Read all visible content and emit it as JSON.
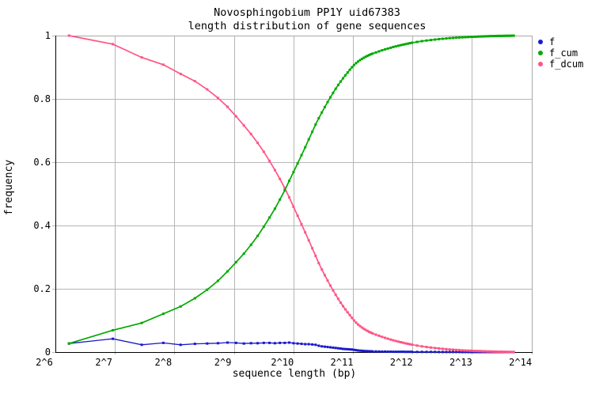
{
  "title": {
    "line1": "Novosphingobium PP1Y uid67383",
    "line2": "length distribution of gene sequences"
  },
  "axes": {
    "x_label": "sequence length (bp)",
    "y_label": "frequency"
  },
  "chart_data": {
    "type": "line",
    "title": "Novosphingobium PP1Y uid67383 - length distribution of gene sequences",
    "xlabel": "sequence length (bp)",
    "ylabel": "frequency",
    "x_scale": "log2",
    "x_ticks": [
      "2^6",
      "2^7",
      "2^8",
      "2^9",
      "2^10",
      "2^11",
      "2^12",
      "2^13",
      "2^14"
    ],
    "x_tick_values": [
      64,
      128,
      256,
      512,
      1024,
      2048,
      4096,
      8192,
      16384
    ],
    "y_ticks": [
      "0",
      "0.2",
      "0.4",
      "0.6",
      "0.8",
      "1"
    ],
    "y_tick_values": [
      0,
      0.2,
      0.4,
      0.6,
      0.8,
      1
    ],
    "ylim": [
      0,
      1
    ],
    "xlim_log2": [
      6,
      14.03
    ],
    "grid": true,
    "legend_position": "top-right-outside",
    "marker": "square",
    "grid_color": "#b6b6b6",
    "border_gray": "#a9a9a9",
    "x": [
      75,
      125,
      175,
      225,
      275,
      325,
      375,
      425,
      475,
      525,
      575,
      625,
      675,
      725,
      775,
      825,
      875,
      925,
      975,
      1025,
      1075,
      1125,
      1175,
      1225,
      1275,
      1325,
      1375,
      1425,
      1475,
      1525,
      1575,
      1625,
      1675,
      1725,
      1775,
      1825,
      1875,
      1925,
      1975,
      2025,
      2075,
      2125,
      2175,
      2225,
      2275,
      2325,
      2375,
      2425,
      2475,
      2525,
      2575,
      2675,
      2775,
      2875,
      2975,
      3075,
      3175,
      3275,
      3375,
      3475,
      3575,
      3675,
      3775,
      3875,
      3975,
      4075,
      4325,
      4575,
      4825,
      5075,
      5325,
      5575,
      5825,
      6075,
      6325,
      6575,
      6825,
      7075,
      7325,
      7575,
      7825,
      8075,
      8325,
      8575,
      8825,
      9075,
      9325,
      9575,
      9825,
      10075,
      10325,
      10575,
      10825,
      11075,
      11325,
      11575,
      11825,
      12075,
      12325,
      12575,
      12825,
      13075,
      13325
    ],
    "series": [
      {
        "name": "f",
        "color": "#1a1acd",
        "values": [
          0.027,
          0.042,
          0.023,
          0.029,
          0.023,
          0.026,
          0.027,
          0.028,
          0.03,
          0.029,
          0.027,
          0.028,
          0.028,
          0.029,
          0.029,
          0.028,
          0.029,
          0.029,
          0.03,
          0.028,
          0.027,
          0.026,
          0.025,
          0.025,
          0.024,
          0.023,
          0.02,
          0.018,
          0.017,
          0.016,
          0.015,
          0.014,
          0.013,
          0.012,
          0.011,
          0.01,
          0.0095,
          0.009,
          0.0085,
          0.008,
          0.007,
          0.006,
          0.005,
          0.0045,
          0.004,
          0.0035,
          0.003,
          0.003,
          0.0025,
          0.0025,
          0.002,
          0.0019,
          0.0017,
          0.0016,
          0.0015,
          0.0013,
          0.0012,
          0.0011,
          0.0011,
          0.001,
          0.001,
          0.0009,
          0.0008,
          0.0008,
          0.0007,
          0.0007,
          0.0006,
          0.0005,
          0.0005,
          0.0004,
          0.0004,
          0.0003,
          0.0003,
          0.0003,
          0.0002,
          0.0002,
          0.0002,
          0.0002,
          0.0001,
          0.0001,
          0.0001,
          0.0001,
          0.0001,
          0.0001,
          0.0001,
          0.0001,
          0.0001,
          0.0001,
          0.0001,
          0.0001,
          0.0001,
          0.0001,
          0,
          0,
          0,
          0,
          0,
          0,
          0,
          0,
          0,
          0,
          0
        ]
      },
      {
        "name": "f_cum",
        "color": "#00aa00",
        "values": [
          0.027,
          0.069,
          0.092,
          0.121,
          0.144,
          0.17,
          0.197,
          0.225,
          0.255,
          0.284,
          0.311,
          0.339,
          0.367,
          0.396,
          0.425,
          0.453,
          0.482,
          0.511,
          0.541,
          0.569,
          0.596,
          0.622,
          0.647,
          0.672,
          0.696,
          0.719,
          0.739,
          0.757,
          0.774,
          0.79,
          0.805,
          0.819,
          0.832,
          0.844,
          0.855,
          0.865,
          0.8745,
          0.8835,
          0.892,
          0.9,
          0.907,
          0.913,
          0.918,
          0.9225,
          0.9265,
          0.93,
          0.933,
          0.936,
          0.9385,
          0.941,
          0.943,
          0.9468,
          0.9503,
          0.9535,
          0.9564,
          0.9591,
          0.9616,
          0.9639,
          0.966,
          0.9679,
          0.9697,
          0.9714,
          0.973,
          0.9745,
          0.9759,
          0.9772,
          0.98,
          0.9824,
          0.9844,
          0.9861,
          0.9876,
          0.9889,
          0.99,
          0.991,
          0.9919,
          0.9927,
          0.9934,
          0.994,
          0.9946,
          0.9951,
          0.9955,
          0.9959,
          0.9963,
          0.9966,
          0.9969,
          0.9972,
          0.9975,
          0.9977,
          0.998,
          0.9982,
          0.9984,
          0.9986,
          0.9988,
          0.9989,
          0.999,
          0.9991,
          0.9992,
          0.9993,
          0.9994,
          0.9995,
          0.9996,
          0.9997,
          0.9998
        ]
      },
      {
        "name": "f_dcum",
        "color": "#ff5585",
        "values": [
          1,
          0.973,
          0.931,
          0.908,
          0.879,
          0.856,
          0.83,
          0.803,
          0.775,
          0.745,
          0.716,
          0.689,
          0.661,
          0.633,
          0.604,
          0.575,
          0.547,
          0.518,
          0.489,
          0.459,
          0.431,
          0.404,
          0.378,
          0.353,
          0.328,
          0.304,
          0.281,
          0.261,
          0.243,
          0.226,
          0.21,
          0.195,
          0.181,
          0.168,
          0.156,
          0.145,
          0.135,
          0.1255,
          0.1165,
          0.108,
          0.1,
          0.093,
          0.087,
          0.082,
          0.0775,
          0.0735,
          0.07,
          0.067,
          0.064,
          0.0615,
          0.059,
          0.0551,
          0.0514,
          0.0481,
          0.0451,
          0.0422,
          0.0396,
          0.0372,
          0.0351,
          0.0331,
          0.0313,
          0.0295,
          0.0278,
          0.0263,
          0.0248,
          0.0235,
          0.0206,
          0.0181,
          0.0161,
          0.0143,
          0.0128,
          0.0114,
          0.0103,
          0.0093,
          0.0083,
          0.0075,
          0.0068,
          0.0062,
          0.0055,
          0.005,
          0.0046,
          0.0042,
          0.0038,
          0.0035,
          0.0032,
          0.0029,
          0.0026,
          0.0024,
          0.0021,
          0.0019,
          0.0017,
          0.0015,
          0.0012,
          0.0011,
          0.001,
          0.0009,
          0.0008,
          0.0007,
          0.0006,
          0.0005,
          0.0004,
          0.0003,
          0.0002
        ]
      }
    ]
  }
}
